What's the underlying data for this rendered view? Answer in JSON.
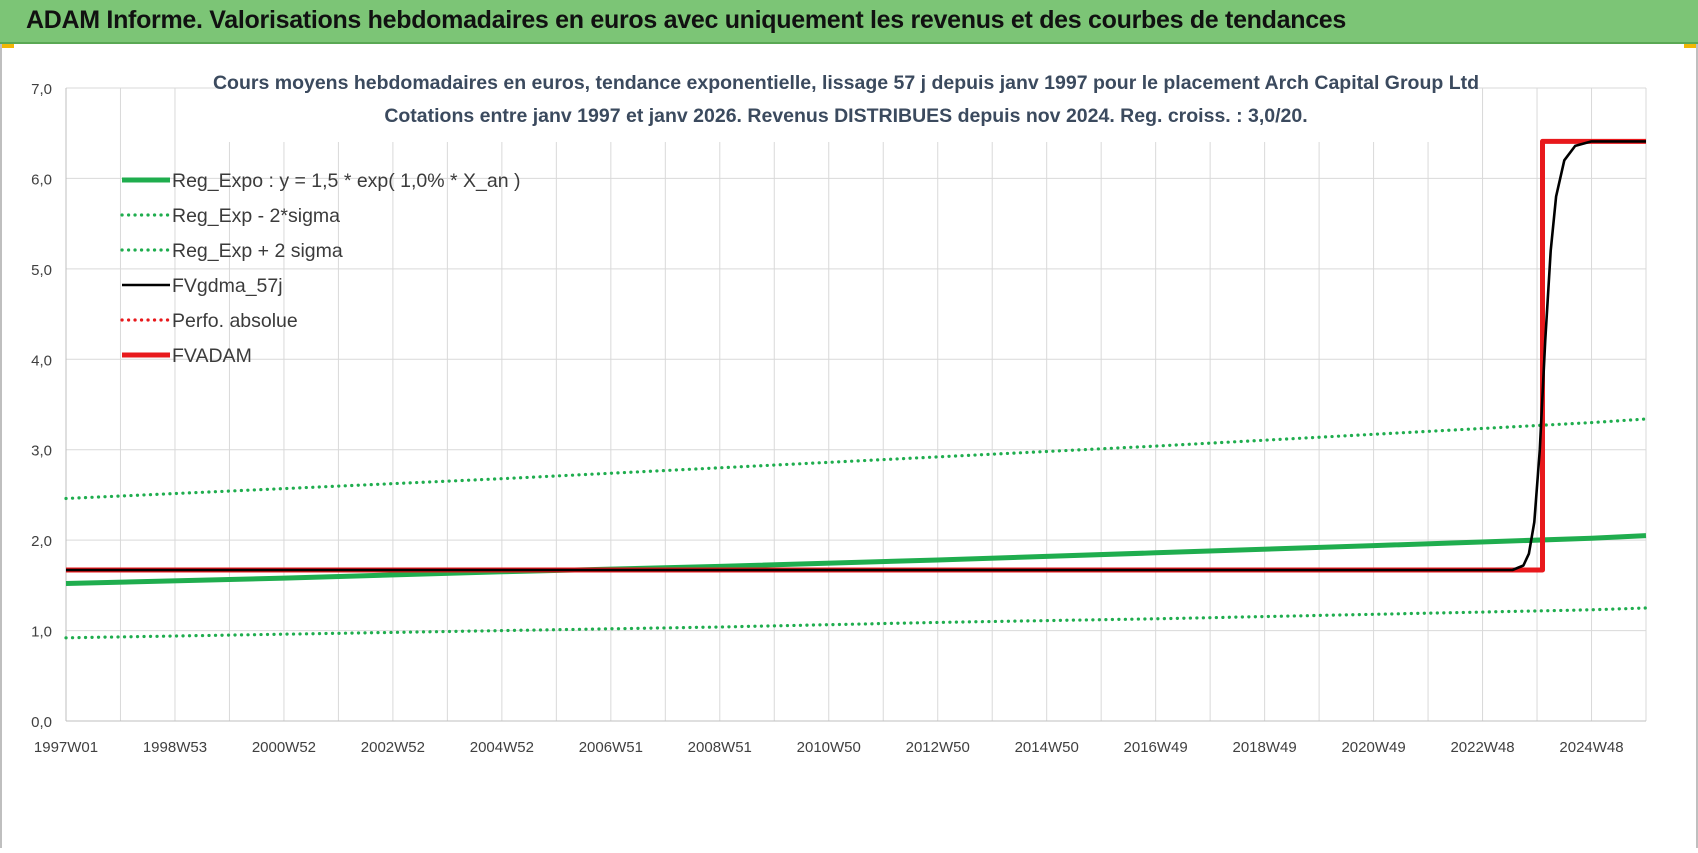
{
  "header": {
    "title": "ADAM Informe. Valorisations hebdomadaires en euros avec uniquement les revenus et des courbes de tendances"
  },
  "colors": {
    "header_bg": "#7cc576",
    "green": "#1fad4e",
    "red": "#e8191c",
    "black": "#000000",
    "grid": "#d9d9d9",
    "axis_text": "#404040",
    "title_text": "#3b4a5e"
  },
  "chart_data": {
    "type": "line",
    "title": "Cours moyens hebdomadaires en euros, tendance exponentielle, lissage 57 j depuis janv 1997  pour le  placement Arch Capital Group Ltd",
    "subtitle": "Cotations entre janv 1997 et janv 2026. Revenus DISTRIBUES depuis nov 2024.  Reg. croiss. : 3,0/20.",
    "xlabel": "",
    "ylabel": "",
    "ylim": [
      0,
      7
    ],
    "yticks": [
      "0,0",
      "1,0",
      "2,0",
      "3,0",
      "4,0",
      "5,0",
      "6,0",
      "7,0"
    ],
    "xlim": [
      1997.0,
      2026.0
    ],
    "xticks": [
      {
        "label": "1997W01",
        "x": 1997.0
      },
      {
        "label": "1998W53",
        "x": 1999.0
      },
      {
        "label": "2000W52",
        "x": 2001.0
      },
      {
        "label": "2002W52",
        "x": 2003.0
      },
      {
        "label": "2004W52",
        "x": 2005.0
      },
      {
        "label": "2006W51",
        "x": 2007.0
      },
      {
        "label": "2008W51",
        "x": 2009.0
      },
      {
        "label": "2010W50",
        "x": 2011.0
      },
      {
        "label": "2012W50",
        "x": 2013.0
      },
      {
        "label": "2014W50",
        "x": 2015.0
      },
      {
        "label": "2016W49",
        "x": 2017.0
      },
      {
        "label": "2018W49",
        "x": 2019.0
      },
      {
        "label": "2020W49",
        "x": 2021.0
      },
      {
        "label": "2022W48",
        "x": 2023.0
      },
      {
        "label": "2024W48",
        "x": 2025.0
      }
    ],
    "grid": true,
    "legend_position": "top-left",
    "series": [
      {
        "name": "Reg_Expo : y = 1,5 * exp( 1,0% *  X_an )",
        "color": "#1fad4e",
        "style": "solid-thick",
        "points": [
          [
            1997.0,
            1.52
          ],
          [
            2001.0,
            1.58
          ],
          [
            2005.0,
            1.65
          ],
          [
            2009.0,
            1.71
          ],
          [
            2013.0,
            1.78
          ],
          [
            2017.0,
            1.86
          ],
          [
            2021.0,
            1.94
          ],
          [
            2025.0,
            2.02
          ],
          [
            2026.0,
            2.05
          ]
        ]
      },
      {
        "name": "Reg_Exp - 2*sigma",
        "color": "#1fad4e",
        "style": "dotted",
        "points": [
          [
            1997.0,
            0.92
          ],
          [
            2001.0,
            0.96
          ],
          [
            2005.0,
            1.0
          ],
          [
            2009.0,
            1.04
          ],
          [
            2013.0,
            1.09
          ],
          [
            2017.0,
            1.13
          ],
          [
            2021.0,
            1.18
          ],
          [
            2025.0,
            1.23
          ],
          [
            2026.0,
            1.25
          ]
        ]
      },
      {
        "name": "Reg_Exp + 2 sigma",
        "color": "#1fad4e",
        "style": "dotted",
        "points": [
          [
            1997.0,
            2.46
          ],
          [
            2001.0,
            2.57
          ],
          [
            2005.0,
            2.68
          ],
          [
            2009.0,
            2.8
          ],
          [
            2013.0,
            2.92
          ],
          [
            2017.0,
            3.04
          ],
          [
            2021.0,
            3.17
          ],
          [
            2025.0,
            3.3
          ],
          [
            2026.0,
            3.34
          ]
        ]
      },
      {
        "name": "FVgdma_57j",
        "color": "#000000",
        "style": "solid",
        "points": [
          [
            1997.0,
            1.67
          ],
          [
            2023.55,
            1.67
          ],
          [
            2023.75,
            1.72
          ],
          [
            2023.85,
            1.85
          ],
          [
            2023.95,
            2.2
          ],
          [
            2024.05,
            3.0
          ],
          [
            2024.15,
            4.2
          ],
          [
            2024.25,
            5.2
          ],
          [
            2024.35,
            5.8
          ],
          [
            2024.5,
            6.2
          ],
          [
            2024.7,
            6.36
          ],
          [
            2025.0,
            6.41
          ],
          [
            2026.0,
            6.41
          ]
        ]
      },
      {
        "name": "Perfo. absolue",
        "color": "#e8191c",
        "style": "dotted",
        "points": []
      },
      {
        "name": "FVADAM",
        "color": "#e8191c",
        "style": "solid-thick",
        "points": [
          [
            1997.0,
            1.67
          ],
          [
            2024.1,
            1.67
          ],
          [
            2024.1,
            6.41
          ],
          [
            2026.0,
            6.41
          ]
        ]
      }
    ]
  }
}
